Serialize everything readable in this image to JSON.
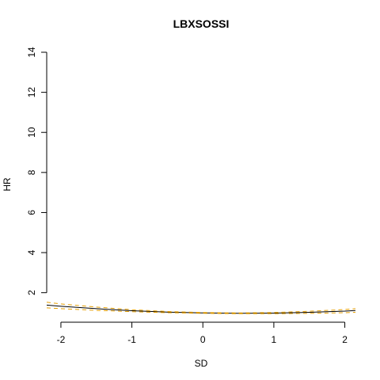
{
  "chart_data": {
    "type": "line",
    "title": "LBXSOSSI",
    "xlabel": "SD",
    "ylabel": "HR",
    "xlim": [
      -2.2,
      2.15
    ],
    "ylim": [
      1.0,
      14.0
    ],
    "x_ticks": [
      -2,
      -1,
      0,
      1,
      2
    ],
    "x_tick_labels": [
      "-2",
      "-1",
      "0",
      "1",
      "2"
    ],
    "y_ticks": [
      2,
      4,
      6,
      8,
      10,
      12,
      14
    ],
    "y_tick_labels": [
      "2",
      "4",
      "6",
      "8",
      "10",
      "12",
      "14"
    ],
    "grid": false,
    "legend": "none",
    "x": [
      -2.2,
      -2.0,
      -1.5,
      -1.0,
      -0.5,
      0.0,
      0.5,
      1.0,
      1.5,
      2.0,
      2.15
    ],
    "series": [
      {
        "role": "estimate",
        "color": "#000000",
        "dash": "solid",
        "values": [
          1.38,
          1.32,
          1.2,
          1.1,
          1.03,
          0.99,
          0.97,
          0.98,
          1.02,
          1.08,
          1.11
        ]
      },
      {
        "role": "upper-ci",
        "color": "#E69F00",
        "dash": "dashed",
        "values": [
          1.52,
          1.44,
          1.28,
          1.15,
          1.06,
          1.01,
          0.99,
          1.01,
          1.07,
          1.16,
          1.2
        ]
      },
      {
        "role": "lower-ci",
        "color": "#E69F00",
        "dash": "dashed",
        "values": [
          1.24,
          1.2,
          1.12,
          1.05,
          1.0,
          0.97,
          0.95,
          0.95,
          0.97,
          1.0,
          1.02
        ]
      }
    ]
  }
}
